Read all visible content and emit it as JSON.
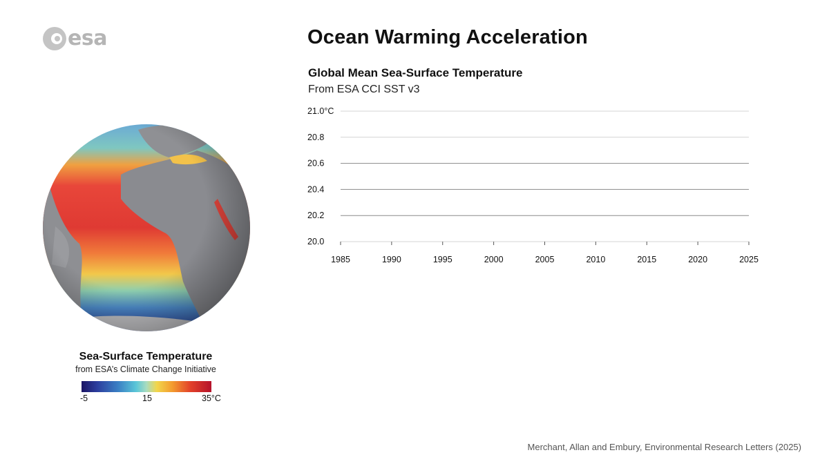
{
  "logo": {
    "text": "esa"
  },
  "title": "Ocean Warming Acceleration",
  "globe_legend": {
    "title": "Sea-Surface Temperature",
    "subtitle": "from ESA’s Climate Change Initiative",
    "min_label": "-5",
    "mid_label": "15",
    "max_label": "35°C"
  },
  "credit": "Merchant, Allan and Embury, Environmental Research Letters (2025)",
  "chart_data": {
    "type": "line",
    "title": "Global Mean Sea-Surface Temperature",
    "subtitle": "From ESA CCI SST v3",
    "xlabel": "",
    "ylabel": "",
    "xlim": [
      1985,
      2025
    ],
    "ylim": [
      20.0,
      21.0
    ],
    "x_ticks": [
      1985,
      1990,
      1995,
      2000,
      2005,
      2010,
      2015,
      2020,
      2025
    ],
    "y_ticks": [
      20.0,
      20.2,
      20.4,
      20.6,
      20.8,
      21.0
    ],
    "y_tick_labels": [
      "20.0",
      "20.2",
      "20.4",
      "20.6",
      "20.8",
      "21.0°C"
    ],
    "grid": true,
    "series": []
  }
}
